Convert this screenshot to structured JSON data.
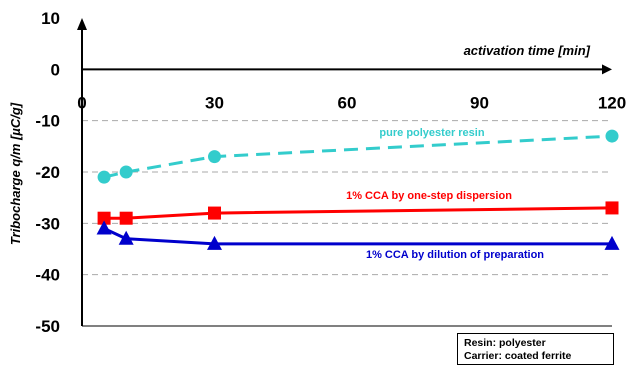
{
  "chart_data": {
    "type": "line",
    "xlabel": "activation time [min]",
    "ylabel": "Tribocharge q/m [µC/g]",
    "xlim": [
      0,
      120
    ],
    "ylim": [
      -50,
      10
    ],
    "x_ticks": [
      0,
      30,
      60,
      90,
      120
    ],
    "y_ticks": [
      10,
      0,
      -10,
      -20,
      -30,
      -40,
      -50
    ],
    "grid": "horizontal dashed",
    "series": [
      {
        "name": "pure polyester resin",
        "color": "#33cccc",
        "marker": "circle",
        "line_style": "dashed",
        "x": [
          5,
          10,
          30,
          120
        ],
        "y": [
          -21,
          -20,
          -17,
          -13
        ]
      },
      {
        "name": "1% CCA by one-step dispersion",
        "color": "#ff0000",
        "marker": "square",
        "line_style": "solid",
        "x": [
          5,
          10,
          30,
          120
        ],
        "y": [
          -29,
          -29,
          -28,
          -27
        ]
      },
      {
        "name": "1% CCA by dilution of preparation",
        "color": "#0000cc",
        "marker": "triangle",
        "line_style": "solid",
        "x": [
          5,
          10,
          30,
          120
        ],
        "y": [
          -31,
          -33,
          -34,
          -34
        ]
      }
    ],
    "annotations": [
      "Resin: polyester",
      "Carrier: coated ferrite"
    ]
  }
}
